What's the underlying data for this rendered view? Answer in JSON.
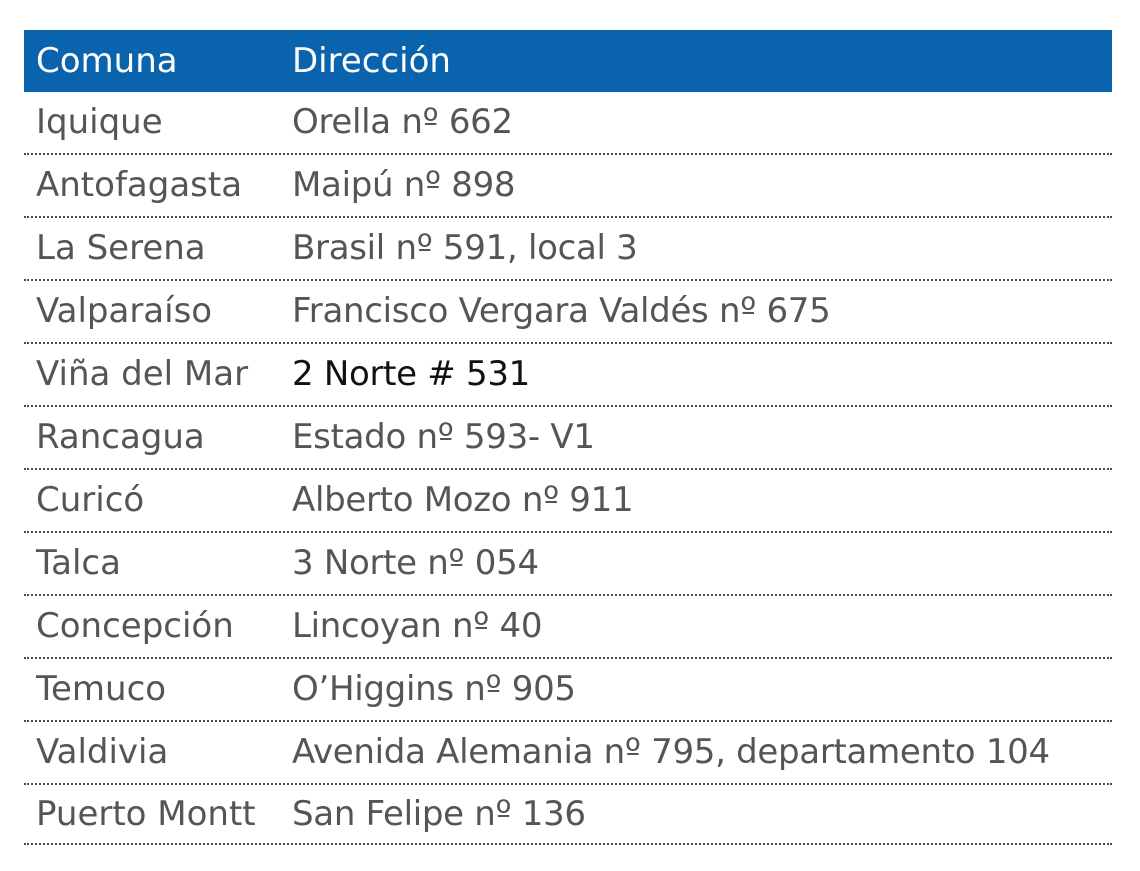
{
  "table": {
    "headers": [
      "Comuna",
      "Dirección"
    ],
    "rows": [
      {
        "comuna": "Iquique",
        "direccion": "Orella nº 662"
      },
      {
        "comuna": "Antofagasta",
        "direccion": "Maipú nº 898"
      },
      {
        "comuna": "La Serena",
        "direccion": "Brasil nº 591, local 3"
      },
      {
        "comuna": "Valparaíso",
        "direccion": "Francisco Vergara Valdés nº 675"
      },
      {
        "comuna": "Viña del Mar",
        "direccion": "2 Norte # 531"
      },
      {
        "comuna": "Rancagua",
        "direccion": "Estado nº 593- V1"
      },
      {
        "comuna": "Curicó",
        "direccion": "Alberto Mozo nº 911"
      },
      {
        "comuna": "Talca",
        "direccion": "3 Norte nº 054"
      },
      {
        "comuna": "Concepción",
        "direccion": "Lincoyan nº 40"
      },
      {
        "comuna": "Temuco",
        "direccion": "O’Higgins nº 905"
      },
      {
        "comuna": "Valdivia",
        "direccion": "Avenida Alemania nº 795, departamento 104"
      },
      {
        "comuna": "Puerto Montt",
        "direccion": "San Felipe nº 136"
      }
    ]
  },
  "colors": {
    "header_background": "#0a63ad",
    "header_text": "#ffffff",
    "body_text": "#555555",
    "row_divider": "#4a4a4a"
  }
}
